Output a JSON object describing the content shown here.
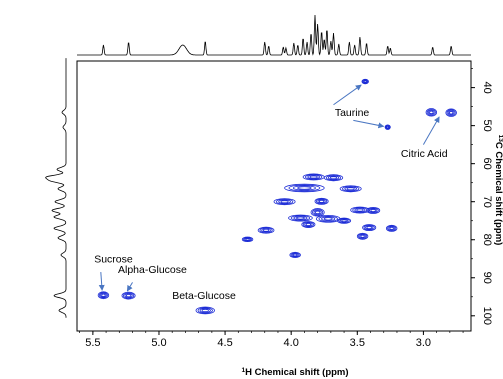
{
  "chart_data": {
    "type": "scatter",
    "title": "",
    "xlabel_prefix": "1",
    "xlabel_main": "H Chemical shift (ppm)",
    "ylabel_prefix": "13",
    "ylabel_main": "C Chemical shift (ppm)",
    "xlim": [
      5.62,
      2.64
    ],
    "ylim": [
      33,
      104
    ],
    "x_reversed": true,
    "y_reversed": true,
    "grid": false,
    "x_ticks": [
      "5.5",
      "5.0",
      "4.5",
      "4.0",
      "3.5",
      "3.0"
    ],
    "y_ticks": [
      "40",
      "50",
      "60",
      "70",
      "80",
      "90",
      "100"
    ],
    "contour_color": "#1b2bd6",
    "peaks": [
      {
        "x": 5.42,
        "y": 94.6,
        "w": 0.04,
        "h": 0.9
      },
      {
        "x": 5.23,
        "y": 94.7,
        "w": 0.05,
        "h": 0.9
      },
      {
        "x": 4.65,
        "y": 98.6,
        "w": 0.07,
        "h": 0.9
      },
      {
        "x": 3.44,
        "y": 38.4,
        "w": 0.025,
        "h": 0.6
      },
      {
        "x": 3.27,
        "y": 50.4,
        "w": 0.02,
        "h": 0.6
      },
      {
        "x": 2.94,
        "y": 46.5,
        "w": 0.04,
        "h": 1.0
      },
      {
        "x": 2.79,
        "y": 46.6,
        "w": 0.04,
        "h": 1.0
      },
      {
        "x": 3.83,
        "y": 63.5,
        "w": 0.08,
        "h": 0.8
      },
      {
        "x": 3.68,
        "y": 63.7,
        "w": 0.07,
        "h": 0.8
      },
      {
        "x": 3.9,
        "y": 66.4,
        "w": 0.15,
        "h": 1.0
      },
      {
        "x": 3.55,
        "y": 66.6,
        "w": 0.08,
        "h": 0.8
      },
      {
        "x": 4.05,
        "y": 70.0,
        "w": 0.08,
        "h": 0.8
      },
      {
        "x": 3.77,
        "y": 69.9,
        "w": 0.05,
        "h": 0.8
      },
      {
        "x": 3.48,
        "y": 72.2,
        "w": 0.07,
        "h": 0.8
      },
      {
        "x": 3.38,
        "y": 72.3,
        "w": 0.05,
        "h": 0.8
      },
      {
        "x": 3.8,
        "y": 72.8,
        "w": 0.05,
        "h": 1.0
      },
      {
        "x": 3.93,
        "y": 74.3,
        "w": 0.09,
        "h": 0.8
      },
      {
        "x": 3.72,
        "y": 74.5,
        "w": 0.09,
        "h": 0.9
      },
      {
        "x": 3.6,
        "y": 75.0,
        "w": 0.05,
        "h": 0.7
      },
      {
        "x": 4.19,
        "y": 77.5,
        "w": 0.06,
        "h": 0.8
      },
      {
        "x": 3.87,
        "y": 76.0,
        "w": 0.05,
        "h": 0.8
      },
      {
        "x": 3.41,
        "y": 76.8,
        "w": 0.05,
        "h": 0.8
      },
      {
        "x": 3.24,
        "y": 77.0,
        "w": 0.04,
        "h": 0.8
      },
      {
        "x": 4.33,
        "y": 79.9,
        "w": 0.04,
        "h": 0.6
      },
      {
        "x": 3.46,
        "y": 79.1,
        "w": 0.04,
        "h": 0.8
      },
      {
        "x": 3.97,
        "y": 84.0,
        "w": 0.04,
        "h": 0.7
      }
    ],
    "annotations": [
      {
        "text": "Sucrose",
        "label_x": 5.49,
        "label_y": 86.0,
        "arrow_from": [
          5.44,
          88.5
        ],
        "arrow_to": [
          5.43,
          93.3
        ]
      },
      {
        "text": "Alpha-Glucose",
        "label_x": 5.31,
        "label_y": 88.8,
        "arrow_from": [
          5.2,
          91.2
        ],
        "arrow_to": [
          5.24,
          93.5
        ]
      },
      {
        "text": "Beta-Glucose",
        "label_x": 4.9,
        "label_y": 95.6,
        "arrow_from": null,
        "arrow_to": null
      },
      {
        "text": "Taurine",
        "label_x": 3.67,
        "label_y": 47.4,
        "arrow_from": [
          3.68,
          44.5
        ],
        "arrow_to": [
          3.47,
          39.3
        ]
      },
      {
        "text": "",
        "label_x": 0,
        "label_y": 0,
        "arrow_from": [
          3.53,
          48.6
        ],
        "arrow_to": [
          3.3,
          50.2
        ]
      },
      {
        "text": "Citric Acid",
        "label_x": 3.17,
        "label_y": 58.3,
        "arrow_from": [
          3.0,
          55.0
        ],
        "arrow_to": [
          2.88,
          47.7
        ]
      }
    ],
    "top_projection_peaks": [
      {
        "x": 5.42,
        "a": 10
      },
      {
        "x": 5.23,
        "a": 13
      },
      {
        "x": 4.82,
        "a": 10,
        "w": 0.04
      },
      {
        "x": 4.65,
        "a": 14
      },
      {
        "x": 4.2,
        "a": 13
      },
      {
        "x": 4.17,
        "a": 9
      },
      {
        "x": 4.06,
        "a": 8
      },
      {
        "x": 4.04,
        "a": 7
      },
      {
        "x": 3.98,
        "a": 12
      },
      {
        "x": 3.95,
        "a": 10
      },
      {
        "x": 3.91,
        "a": 17
      },
      {
        "x": 3.88,
        "a": 13
      },
      {
        "x": 3.85,
        "a": 22
      },
      {
        "x": 3.82,
        "a": 40
      },
      {
        "x": 3.8,
        "a": 31
      },
      {
        "x": 3.77,
        "a": 24
      },
      {
        "x": 3.75,
        "a": 16
      },
      {
        "x": 3.73,
        "a": 26
      },
      {
        "x": 3.7,
        "a": 14
      },
      {
        "x": 3.68,
        "a": 22
      },
      {
        "x": 3.64,
        "a": 11
      },
      {
        "x": 3.56,
        "a": 13
      },
      {
        "x": 3.52,
        "a": 10
      },
      {
        "x": 3.48,
        "a": 18
      },
      {
        "x": 3.43,
        "a": 12
      },
      {
        "x": 3.27,
        "a": 9
      },
      {
        "x": 3.25,
        "a": 7
      },
      {
        "x": 2.93,
        "a": 8
      },
      {
        "x": 2.79,
        "a": 9
      }
    ],
    "side_projection_peaks": [
      {
        "y": 46.5,
        "a": 4
      },
      {
        "y": 50.4,
        "a": 3
      },
      {
        "y": 61.5,
        "a": 9
      },
      {
        "y": 63.5,
        "a": 18
      },
      {
        "y": 64.5,
        "a": 14
      },
      {
        "y": 66.6,
        "a": 8
      },
      {
        "y": 70.0,
        "a": 11
      },
      {
        "y": 72.3,
        "a": 14
      },
      {
        "y": 74.0,
        "a": 12
      },
      {
        "y": 77.0,
        "a": 12
      },
      {
        "y": 79.5,
        "a": 8
      },
      {
        "y": 84.0,
        "a": 5
      },
      {
        "y": 94.7,
        "a": 12
      },
      {
        "y": 98.6,
        "a": 7
      }
    ]
  }
}
